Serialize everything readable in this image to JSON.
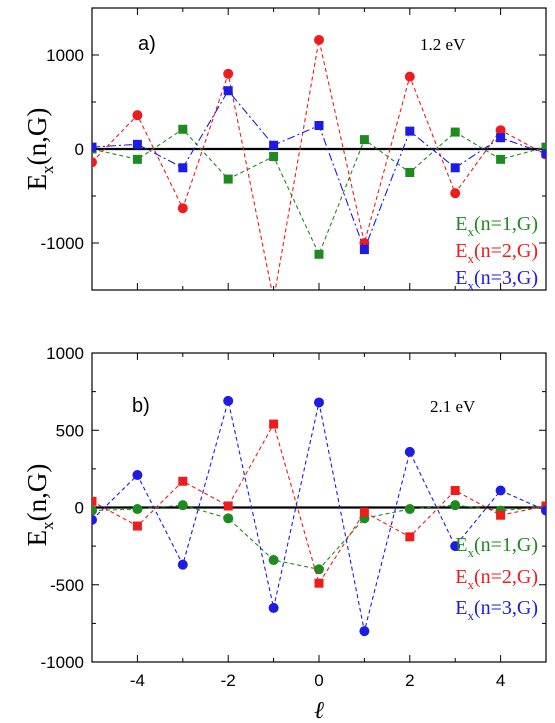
{
  "chart_data": [
    {
      "type": "scatter",
      "panel_label": "a)",
      "annotation": "1.2 eV",
      "ylabel_main": "E",
      "ylabel_sub": "x",
      "ylabel_rest": "(n,G)",
      "xlim": [
        -5,
        5
      ],
      "ylim": [
        -1500,
        1500
      ],
      "yticks": [
        -1000,
        0,
        1000
      ],
      "ytick_labels": [
        "-1000",
        "0",
        "1000"
      ],
      "grid": false,
      "legend_position": "bottom-right",
      "x": [
        -5,
        -4,
        -3,
        -2,
        -1,
        0,
        1,
        2,
        3,
        4,
        5
      ],
      "series": [
        {
          "name": "E_x(n=1,G)",
          "legend_main": "E",
          "legend_sub": "x",
          "legend_rest": "(n=1,G)",
          "color": "#1f8a1f",
          "marker": "square",
          "line": "dashed",
          "values": [
            0,
            -110,
            210,
            -320,
            -80,
            -1120,
            100,
            -250,
            180,
            -110,
            20
          ]
        },
        {
          "name": "E_x(n=2,G)",
          "legend_main": "E",
          "legend_sub": "x",
          "legend_rest": "(n=2,G)",
          "color": "#ee1c1c",
          "marker": "circle",
          "line": "dashed",
          "values": [
            -140,
            360,
            -630,
            800,
            -1600,
            1160,
            -1000,
            770,
            -470,
            200,
            -60
          ]
        },
        {
          "name": "E_x(n=3,G)",
          "legend_main": "E",
          "legend_sub": "x",
          "legend_rest": "(n=3,G)",
          "color": "#1c1ce6",
          "marker": "square",
          "line": "dashdot",
          "values": [
            20,
            50,
            -200,
            620,
            40,
            250,
            -1070,
            190,
            -200,
            120,
            -50
          ]
        }
      ]
    },
    {
      "type": "scatter",
      "panel_label": "b)",
      "annotation": "2.1 eV",
      "ylabel_main": "E",
      "ylabel_sub": "x",
      "ylabel_rest": "(n,G)",
      "xlabel": "ℓ",
      "xlim": [
        -5,
        5
      ],
      "ylim": [
        -1000,
        1000
      ],
      "xticks": [
        -4,
        -2,
        0,
        2,
        4
      ],
      "xtick_labels": [
        "-4",
        "-2",
        "0",
        "2",
        "4"
      ],
      "yticks": [
        -1000,
        -500,
        0,
        500,
        1000
      ],
      "ytick_labels": [
        "-1000",
        "-500",
        "0",
        "500",
        "1000"
      ],
      "grid": false,
      "legend_position": "bottom-right",
      "x": [
        -5,
        -4,
        -3,
        -2,
        -1,
        0,
        1,
        2,
        3,
        4,
        5
      ],
      "series": [
        {
          "name": "E_x(n=1,G)",
          "legend_main": "E",
          "legend_sub": "x",
          "legend_rest": "(n=1,G)",
          "color": "#1f8a1f",
          "marker": "circle",
          "line": "dashed",
          "values": [
            -20,
            -10,
            15,
            -70,
            -340,
            -400,
            -70,
            -10,
            15,
            -20,
            5
          ]
        },
        {
          "name": "E_x(n=2,G)",
          "legend_main": "E",
          "legend_sub": "x",
          "legend_rest": "(n=2,G)",
          "color": "#ee1c1c",
          "marker": "square",
          "line": "dashed",
          "values": [
            40,
            -120,
            170,
            10,
            540,
            -490,
            -30,
            -190,
            110,
            -50,
            10
          ]
        },
        {
          "name": "E_x(n=3,G)",
          "legend_main": "E",
          "legend_sub": "x",
          "legend_rest": "(n=3,G)",
          "color": "#1c1ce6",
          "marker": "circle",
          "line": "dashed",
          "values": [
            -80,
            210,
            -370,
            690,
            -650,
            680,
            -800,
            360,
            -250,
            110,
            -20
          ]
        }
      ]
    }
  ]
}
